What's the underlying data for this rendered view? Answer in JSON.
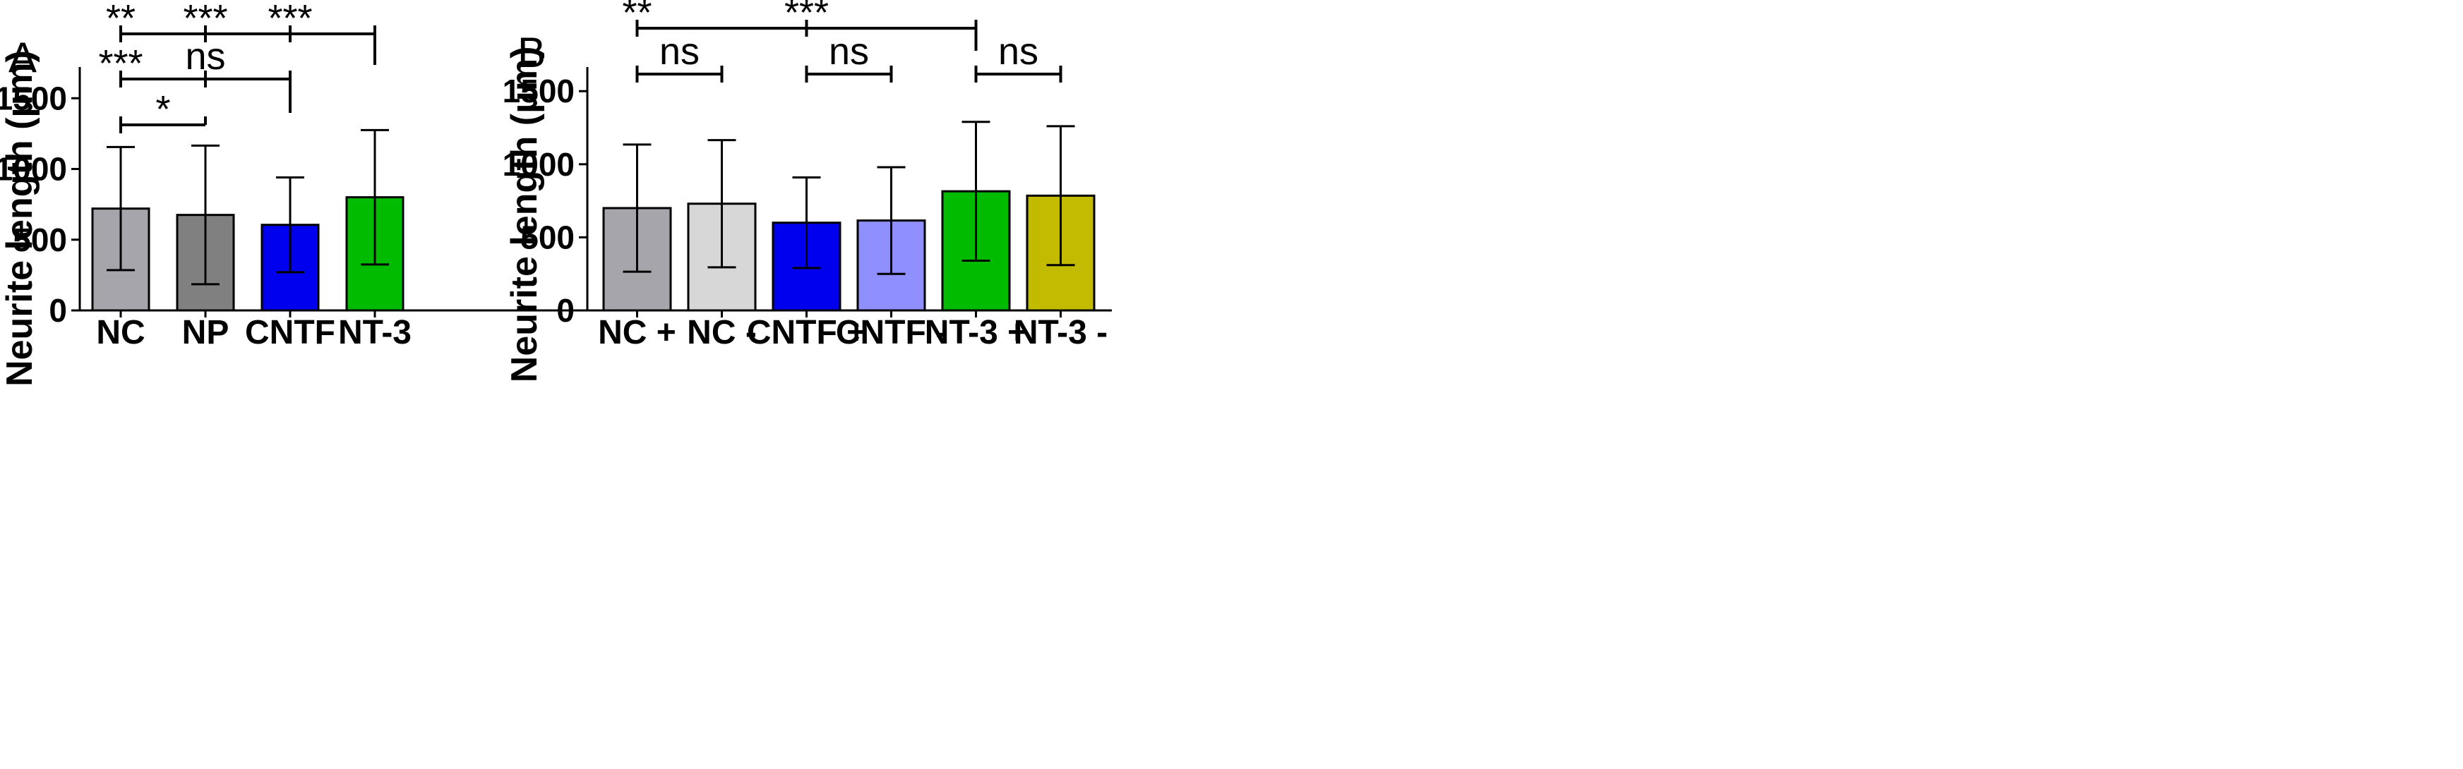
{
  "chart_data": [
    {
      "panel": "A",
      "type": "bar",
      "ylabel": "Neurite length (μm)",
      "ylim": [
        0,
        1700
      ],
      "yticks": [
        0,
        500,
        1000,
        1500
      ],
      "categories": [
        "NC",
        "NP",
        "CNTF",
        "NT-3"
      ],
      "values": [
        720,
        675,
        605,
        800
      ],
      "error": [
        435,
        490,
        335,
        475
      ],
      "colors": [
        "#a6a5ab",
        "#808080",
        "#0000ee",
        "#00bb00"
      ],
      "significance": [
        {
          "from": "NC",
          "to": "NP",
          "label": "*",
          "y": 1310
        },
        {
          "from": "NC",
          "to": "CNTF",
          "label": "***",
          "y": 1630,
          "mid_label": "ns"
        },
        {
          "from": "NC",
          "to": "NT-3",
          "label": "**",
          "y": 1950,
          "extra_labels": [
            "***",
            "***"
          ]
        }
      ]
    },
    {
      "panel": "B",
      "type": "bar",
      "ylabel": "Neurite length (μm)",
      "ylim": [
        0,
        1700
      ],
      "yticks": [
        0,
        500,
        1000,
        1500
      ],
      "categories": [
        "NC +",
        "NC -",
        "CNTF +",
        "CNTF -",
        "NT-3 +",
        "NT-3 -"
      ],
      "values": [
        700,
        730,
        600,
        615,
        815,
        785
      ],
      "error": [
        435,
        435,
        310,
        365,
        475,
        475
      ],
      "colors": [
        "#a6a5ab",
        "#d7d7d7",
        "#0000ee",
        "#8f8fff",
        "#00bb00",
        "#c2bb00"
      ],
      "significance": [
        {
          "from": "NC +",
          "to": "NC -",
          "label": "ns",
          "y": 1600
        },
        {
          "from": "CNTF +",
          "to": "CNTF -",
          "label": "ns",
          "y": 1600
        },
        {
          "from": "NT-3 +",
          "to": "NT-3 -",
          "label": "ns",
          "y": 1600
        },
        {
          "from": "NC +",
          "to": "NT-3 +",
          "label": "**",
          "y": 1925,
          "extra_labels": [
            "***"
          ]
        }
      ]
    }
  ]
}
